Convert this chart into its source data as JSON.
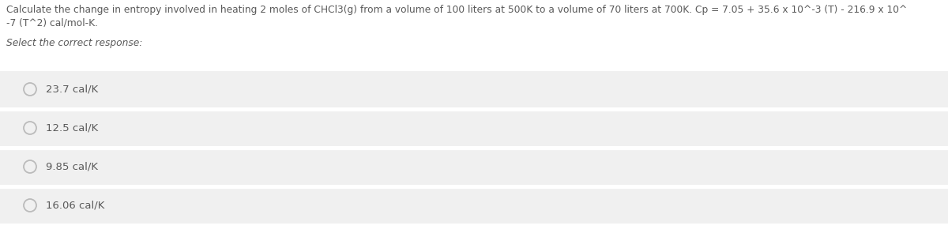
{
  "question_line1": "Calculate the change in entropy involved in heating 2 moles of CHCl3(g) from a volume of 100 liters at 500K to a volume of 70 liters at 700K. Cp = 7.05 + 35.6 x 10^-3 (T) - 216.9 x 10^",
  "question_line2": "-7 (T^2) cal/mol-K.",
  "select_text": "Select the correct response:",
  "options": [
    "23.7 cal/K",
    "12.5 cal/K",
    "9.85 cal/K",
    "16.06 cal/K"
  ],
  "page_bg": "#ffffff",
  "option_bg": "#f0f0f0",
  "question_color": "#5a5a5a",
  "select_color": "#5a5a5a",
  "option_text_color": "#5a5a5a",
  "circle_edge_color": "#bbbbbb",
  "divider_color": "#ffffff",
  "font_size_question": 8.8,
  "font_size_select": 8.8,
  "font_size_option": 9.5,
  "fig_width": 12.0,
  "fig_height": 2.95
}
